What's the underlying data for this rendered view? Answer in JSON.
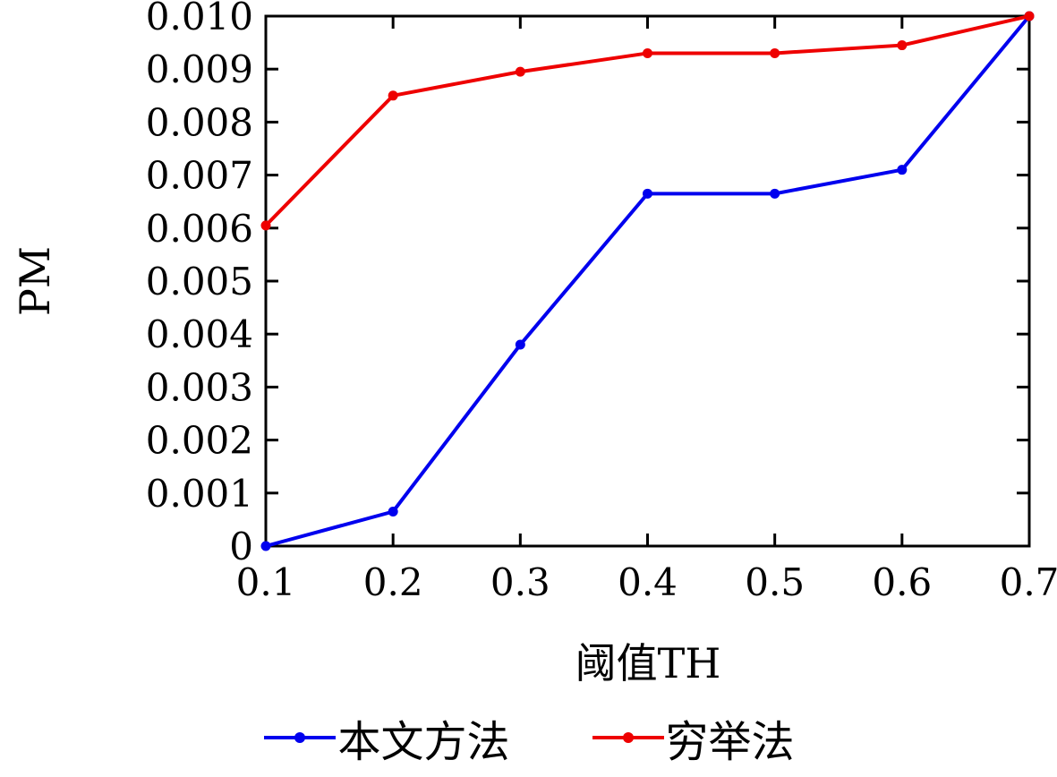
{
  "chart_data": {
    "type": "line",
    "title": "",
    "xlabel": "阈值TH",
    "ylabel": "PM",
    "x": [
      0.1,
      0.2,
      0.3,
      0.4,
      0.5,
      0.6,
      0.7
    ],
    "xlim": [
      0.1,
      0.7
    ],
    "ylim": [
      0,
      0.01
    ],
    "xtick_values": [
      0.1,
      0.2,
      0.3,
      0.4,
      0.5,
      0.6,
      0.7
    ],
    "xtick_labels": [
      "0.1",
      "0.2",
      "0.3",
      "0.4",
      "0.5",
      "0.6",
      "0.7"
    ],
    "ytick_values": [
      0,
      0.001,
      0.002,
      0.003,
      0.004,
      0.005,
      0.006,
      0.007,
      0.008,
      0.009,
      0.01
    ],
    "ytick_labels": [
      "0",
      "0.001",
      "0.002",
      "0.003",
      "0.004",
      "0.005",
      "0.006",
      "0.007",
      "0.008",
      "0.009",
      "0.010"
    ],
    "grid": false,
    "legend_position": "bottom",
    "axis_color": "#000000",
    "background": "#ffffff",
    "series": [
      {
        "name": "本文方法",
        "color": "#0000ee",
        "marker": "circle",
        "values": [
          0,
          0.00065,
          0.0038,
          0.00665,
          0.00665,
          0.0071,
          0.01
        ]
      },
      {
        "name": "穷举法",
        "color": "#ee0000",
        "marker": "circle",
        "values": [
          0.00605,
          0.0085,
          0.00895,
          0.0093,
          0.0093,
          0.00945,
          0.01
        ]
      }
    ]
  }
}
